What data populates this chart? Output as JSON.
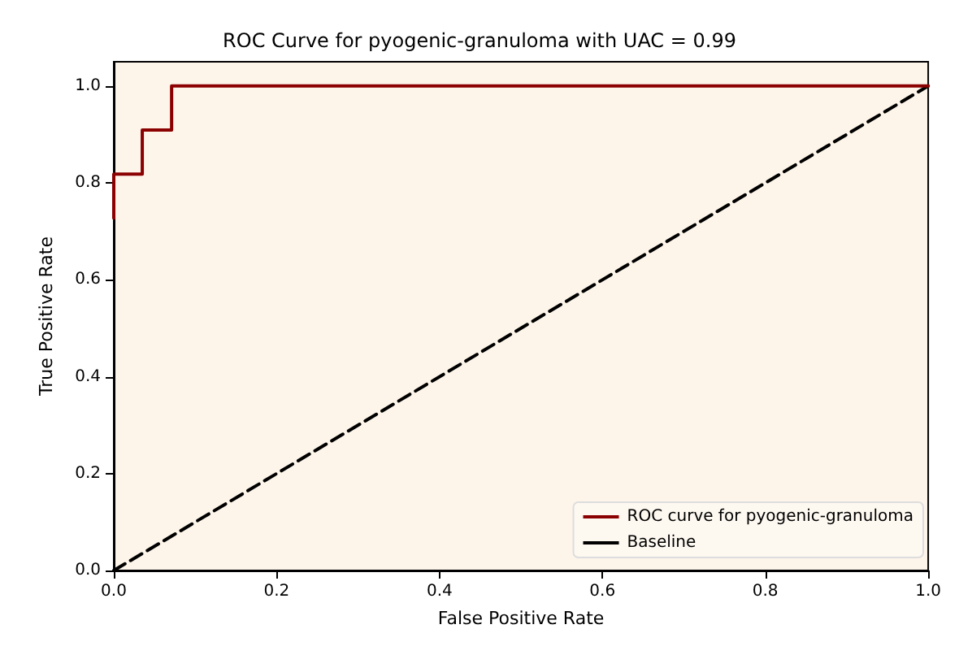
{
  "chart_data": {
    "type": "line",
    "title": "ROC Curve for pyogenic-granuloma with UAC = 0.99",
    "xlabel": "False Positive Rate",
    "ylabel": "True Positive Rate",
    "series": [
      {
        "name": "ROC curve for pyogenic-granuloma",
        "color": "#8b0000",
        "line_style": "solid",
        "x": [
          0,
          0,
          0.035,
          0.035,
          0.071,
          0.071,
          1
        ],
        "values": [
          0.727,
          0.818,
          0.818,
          0.909,
          0.909,
          1,
          1
        ]
      },
      {
        "name": "Baseline",
        "color": "#000000",
        "line_style": "dashed",
        "x": [
          0,
          1
        ],
        "values": [
          0,
          1
        ]
      }
    ],
    "xlim": [
      0,
      1
    ],
    "ylim": [
      0,
      1.05
    ],
    "xticks": [
      {
        "value": 0,
        "label": "0.0"
      },
      0.2,
      0.4,
      0.6,
      0.8,
      {
        "value": 1,
        "label": "1.0"
      }
    ],
    "yticks": [
      {
        "value": 0,
        "label": "0.0"
      },
      0.2,
      0.4,
      0.6,
      0.8,
      {
        "value": 1,
        "label": "1.0"
      }
    ],
    "grid": false,
    "legend": "bottom right",
    "marker": "none"
  }
}
